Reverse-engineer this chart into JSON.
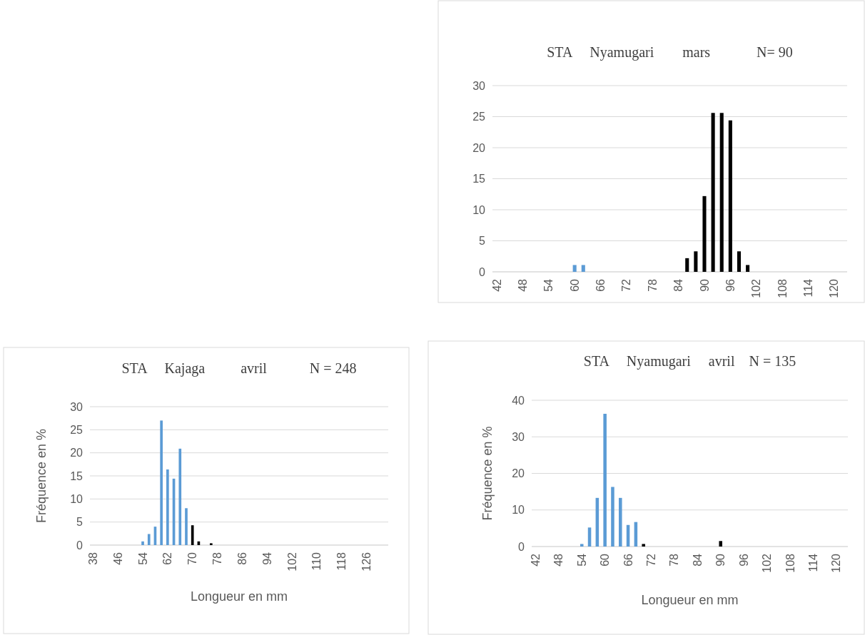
{
  "chart_data": [
    {
      "type": "bar",
      "title": "STA     Nyamugari        mars             N= 90",
      "categories": [
        "42",
        null,
        null,
        "48",
        null,
        null,
        "54",
        null,
        null,
        "60",
        null,
        null,
        "66",
        null,
        null,
        "72",
        null,
        null,
        "78",
        null,
        null,
        "84",
        null,
        null,
        "90",
        null,
        null,
        "96",
        null,
        null,
        "102",
        null,
        null,
        "108",
        null,
        null,
        "114",
        null,
        null,
        "120",
        null
      ],
      "series": [
        {
          "color": "#5b9bd5",
          "values": [
            null,
            null,
            null,
            null,
            null,
            null,
            null,
            null,
            null,
            1.1,
            1.1,
            null,
            null,
            null,
            null,
            null,
            null,
            null,
            null,
            null,
            null,
            null,
            null,
            null,
            null,
            null,
            null,
            null,
            null,
            null,
            null,
            null,
            null,
            null,
            null,
            null,
            null,
            null,
            null,
            null,
            null
          ]
        },
        {
          "color": "#000000",
          "values": [
            null,
            null,
            null,
            null,
            null,
            null,
            null,
            null,
            null,
            null,
            null,
            null,
            null,
            null,
            null,
            null,
            null,
            null,
            null,
            null,
            null,
            null,
            2.2,
            3.3,
            12.2,
            25.6,
            25.6,
            24.4,
            3.3,
            1.1,
            null,
            null,
            null,
            null,
            null,
            null,
            null,
            null,
            null,
            null,
            null
          ]
        }
      ],
      "ylim": [
        0,
        30
      ],
      "yticks": [
        0,
        5,
        10,
        15,
        20,
        25,
        30
      ],
      "grid": "y"
    },
    {
      "type": "bar",
      "title": "STA     Kajaga          avril            N = 248",
      "xlabel": "Longueur en mm",
      "ylabel": "Fréquence en %",
      "categories": [
        "38",
        null,
        null,
        null,
        "46",
        null,
        null,
        null,
        "54",
        null,
        null,
        null,
        "62",
        null,
        null,
        null,
        "70",
        null,
        null,
        null,
        "78",
        null,
        null,
        null,
        "86",
        null,
        null,
        null,
        "94",
        null,
        null,
        null,
        "102",
        null,
        null,
        null,
        "110",
        null,
        null,
        null,
        "118",
        null,
        null,
        null,
        "126",
        null,
        null,
        null
      ],
      "series": [
        {
          "color": "#5b9bd5",
          "values": [
            null,
            null,
            null,
            null,
            null,
            null,
            null,
            null,
            0.8,
            2.4,
            4.0,
            27.0,
            16.4,
            14.4,
            20.9,
            8.0,
            null,
            null,
            null,
            null,
            null,
            null,
            null,
            null,
            null,
            null,
            null,
            null,
            null,
            null,
            null,
            null,
            null,
            null,
            null,
            null,
            null,
            null,
            null,
            null,
            null,
            null,
            null,
            null,
            null,
            null,
            null,
            null
          ]
        },
        {
          "color": "#000000",
          "values": [
            null,
            null,
            null,
            null,
            null,
            null,
            null,
            null,
            null,
            null,
            null,
            null,
            null,
            null,
            null,
            null,
            4.3,
            0.8,
            null,
            0.4,
            null,
            null,
            null,
            null,
            null,
            null,
            null,
            null,
            null,
            null,
            null,
            null,
            null,
            null,
            null,
            null,
            null,
            null,
            null,
            null,
            null,
            null,
            null,
            null,
            null,
            null,
            null,
            null
          ]
        }
      ],
      "ylim": [
        0,
        30
      ],
      "yticks": [
        0,
        5,
        10,
        15,
        20,
        25,
        30
      ],
      "grid": "y"
    },
    {
      "type": "bar",
      "title": "STA     Nyamugari     avril    N = 135",
      "xlabel": "Longueur en mm",
      "ylabel": "Fréquence en %",
      "categories": [
        "42",
        null,
        null,
        "48",
        null,
        null,
        "54",
        null,
        null,
        "60",
        null,
        null,
        "66",
        null,
        null,
        "72",
        null,
        null,
        "78",
        null,
        null,
        "84",
        null,
        null,
        "90",
        null,
        null,
        "96",
        null,
        null,
        "102",
        null,
        null,
        "108",
        null,
        null,
        "114",
        null,
        null,
        "120",
        null
      ],
      "series": [
        {
          "color": "#5b9bd5",
          "values": [
            null,
            null,
            null,
            null,
            null,
            null,
            0.7,
            5.2,
            13.3,
            36.3,
            16.3,
            13.3,
            5.9,
            6.7,
            null,
            null,
            null,
            null,
            null,
            null,
            null,
            null,
            null,
            null,
            null,
            null,
            null,
            null,
            null,
            null,
            null,
            null,
            null,
            null,
            null,
            null,
            null,
            null,
            null,
            null,
            null
          ]
        },
        {
          "color": "#000000",
          "values": [
            null,
            null,
            null,
            null,
            null,
            null,
            null,
            null,
            null,
            null,
            null,
            null,
            null,
            null,
            0.7,
            null,
            null,
            null,
            null,
            null,
            null,
            null,
            null,
            null,
            1.5,
            null,
            null,
            null,
            null,
            null,
            null,
            null,
            null,
            null,
            null,
            null,
            null,
            null,
            null,
            null,
            null
          ]
        }
      ],
      "ylim": [
        0,
        40
      ],
      "yticks": [
        0,
        10,
        20,
        30,
        40
      ],
      "grid": "y"
    }
  ]
}
